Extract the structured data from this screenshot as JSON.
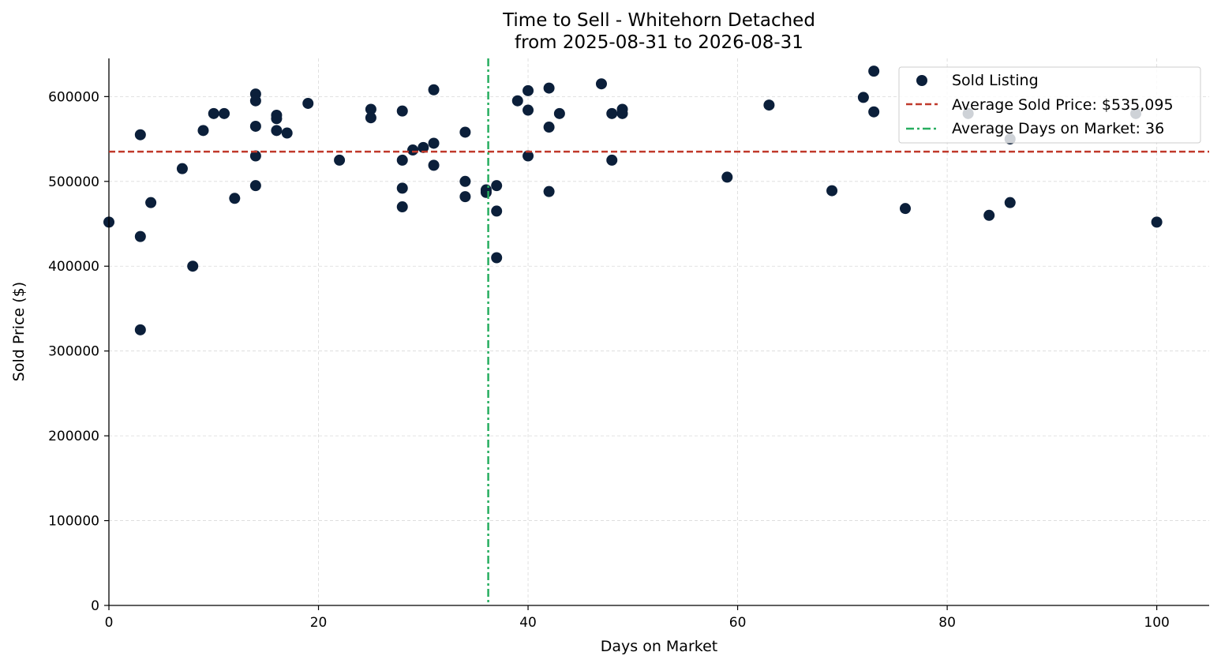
{
  "chart_data": {
    "type": "scatter",
    "title": "Time to Sell - Whitehorn Detached",
    "subtitle": "from 2025-08-31 to 2026-08-31",
    "xlabel": "Days on Market",
    "ylabel": "Sold Price ($)",
    "xlim": [
      0,
      105
    ],
    "ylim": [
      0,
      645000
    ],
    "xticks": [
      0,
      20,
      40,
      60,
      80,
      100
    ],
    "yticks": [
      0,
      100000,
      200000,
      300000,
      400000,
      500000,
      600000
    ],
    "grid": true,
    "legend_position": "top-right",
    "colors": {
      "points": "#0b1f3a",
      "avg_price_line": "#c0392b",
      "avg_days_line": "#27ae60",
      "grid": "#d9d9d9"
    },
    "series": [
      {
        "name": "Sold Listing",
        "points": [
          [
            0,
            452000
          ],
          [
            3,
            555000
          ],
          [
            3,
            435000
          ],
          [
            3,
            325000
          ],
          [
            4,
            475000
          ],
          [
            7,
            515000
          ],
          [
            8,
            400000
          ],
          [
            9,
            560000
          ],
          [
            10,
            580000
          ],
          [
            11,
            580000
          ],
          [
            12,
            480000
          ],
          [
            14,
            603000
          ],
          [
            14,
            595000
          ],
          [
            14,
            565000
          ],
          [
            14,
            530000
          ],
          [
            14,
            495000
          ],
          [
            16,
            578000
          ],
          [
            16,
            574000
          ],
          [
            16,
            560000
          ],
          [
            17,
            557000
          ],
          [
            19,
            592000
          ],
          [
            22,
            525000
          ],
          [
            25,
            585000
          ],
          [
            25,
            575000
          ],
          [
            28,
            583000
          ],
          [
            28,
            525000
          ],
          [
            28,
            492000
          ],
          [
            28,
            470000
          ],
          [
            29,
            537000
          ],
          [
            30,
            540000
          ],
          [
            31,
            608000
          ],
          [
            31,
            545000
          ],
          [
            31,
            519000
          ],
          [
            34,
            558000
          ],
          [
            34,
            500000
          ],
          [
            34,
            482000
          ],
          [
            36,
            490000
          ],
          [
            36,
            487000
          ],
          [
            37,
            495000
          ],
          [
            37,
            465000
          ],
          [
            37,
            410000
          ],
          [
            39,
            595000
          ],
          [
            40,
            607000
          ],
          [
            40,
            584000
          ],
          [
            40,
            530000
          ],
          [
            42,
            610000
          ],
          [
            42,
            564000
          ],
          [
            42,
            488000
          ],
          [
            43,
            580000
          ],
          [
            47,
            615000
          ],
          [
            48,
            580000
          ],
          [
            48,
            525000
          ],
          [
            49,
            585000
          ],
          [
            49,
            580000
          ],
          [
            59,
            505000
          ],
          [
            63,
            590000
          ],
          [
            69,
            489000
          ],
          [
            72,
            599000
          ],
          [
            73,
            630000
          ],
          [
            73,
            582000
          ],
          [
            76,
            468000
          ],
          [
            82,
            580000
          ],
          [
            84,
            460000
          ],
          [
            86,
            550000
          ],
          [
            86,
            475000
          ],
          [
            98,
            580000
          ],
          [
            100,
            452000
          ]
        ]
      }
    ],
    "reference_lines": [
      {
        "name": "Average Sold Price: $535,095",
        "orientation": "horizontal",
        "value": 535095,
        "style": "dashed"
      },
      {
        "name": "Average Days on Market: 36",
        "orientation": "vertical",
        "value": 36.2,
        "style": "dashdot"
      }
    ]
  }
}
